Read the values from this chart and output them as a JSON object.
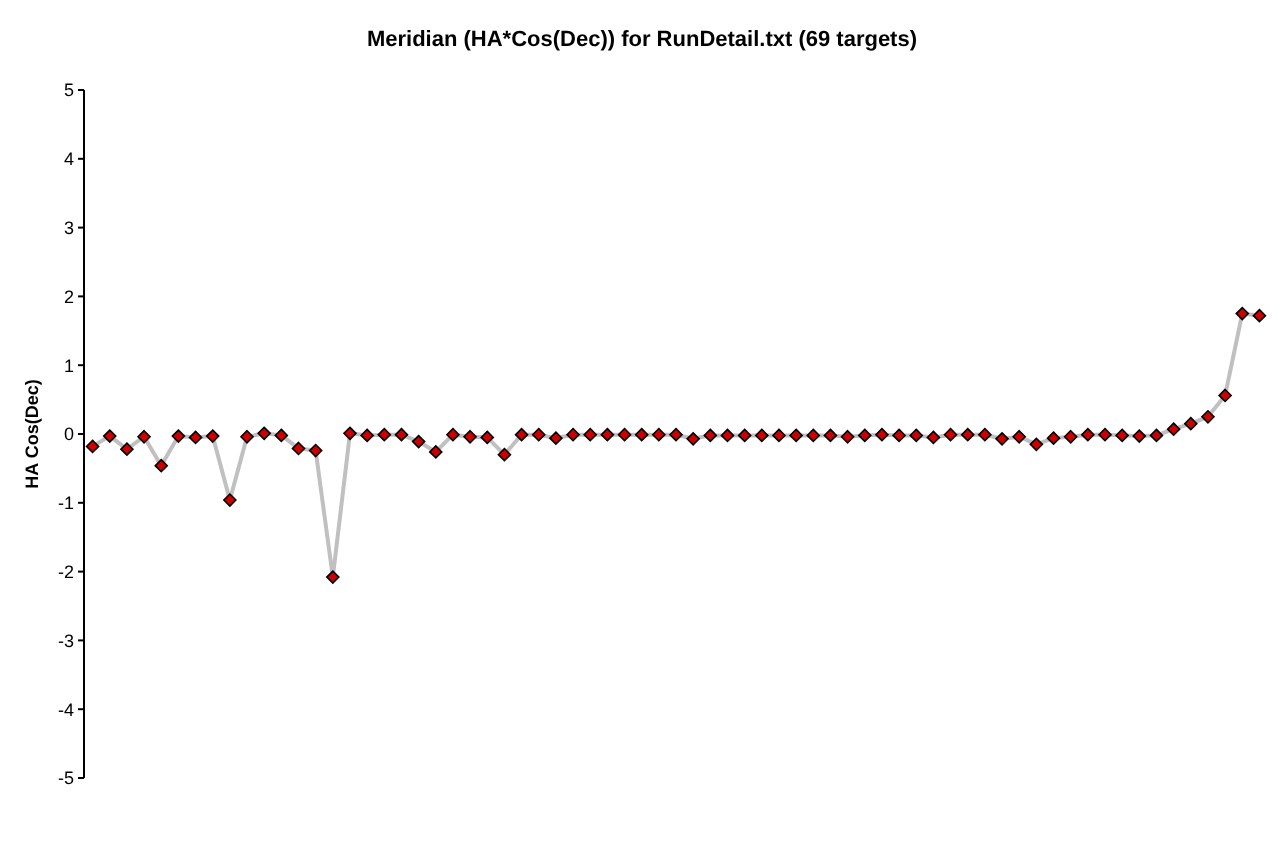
{
  "chart_data": {
    "type": "line",
    "title": "Meridian (HA*Cos(Dec)) for RunDetail.txt (69 targets)",
    "ylabel": "HA Cos(Dec)",
    "categories": [
      null,
      null,
      null,
      null,
      null,
      null,
      null,
      null,
      null,
      null,
      null,
      null,
      null,
      null,
      null,
      null,
      null,
      null,
      null,
      null,
      null,
      null,
      null,
      null,
      null,
      null,
      null,
      null,
      null,
      null,
      null,
      null,
      null,
      null,
      null,
      null,
      null,
      null,
      null,
      null,
      null,
      null,
      null,
      null,
      null,
      null,
      null,
      null,
      null,
      null,
      null,
      null,
      null,
      null,
      null,
      null,
      null,
      null,
      null,
      null,
      null,
      null,
      null,
      null,
      null,
      null,
      null,
      null,
      null
    ],
    "series": [
      {
        "color": "#c0c0c0",
        "colors": [
          "#cc0000",
          "#cc0000",
          "#cc0000",
          "#cc0000",
          "#cc0000",
          "#cc0000",
          "#cc0000",
          "#cc0000",
          "#cc0000",
          "#cc0000",
          "#cc0000",
          "#cc0000",
          "#cc0000",
          "#cc0000",
          "#cc0000",
          "#cc0000",
          "#cc0000",
          "#cc0000",
          "#cc0000",
          "#cc0000",
          "#cc0000",
          "#cc0000",
          "#cc0000",
          "#cc0000",
          "#cc0000",
          "#cc0000",
          "#cc0000",
          "#cc0000",
          "#cc0000",
          "#cc0000",
          "#cc0000",
          "#cc0000",
          "#cc0000",
          "#cc0000",
          "#cc0000",
          "#cc0000",
          "#cc0000",
          "#cc0000",
          "#cc0000",
          "#cc0000",
          "#cc0000",
          "#cc0000",
          "#cc0000",
          "#cc0000",
          "#cc0000",
          "#cc0000",
          "#cc0000",
          "#cc0000",
          "#cc0000",
          "#cc0000",
          "#cc0000",
          "#cc0000",
          "#cc0000",
          "#cc0000",
          "#cc0000",
          "#cc0000",
          "#cc0000",
          "#cc0000",
          "#cc0000",
          "#cc0000",
          "#cc0000",
          "#cc0000",
          "#cc0000",
          "#cc0000",
          "#cc0000",
          "#cc0000",
          "#cc0000",
          "#cc0000",
          "#cc0000"
        ],
        "values": [
          -0.18,
          -0.03,
          -0.22,
          -0.04,
          -0.46,
          -0.03,
          -0.05,
          -0.03,
          -0.96,
          -0.04,
          0.01,
          -0.02,
          -0.21,
          -0.24,
          -2.08,
          0.01,
          -0.02,
          -0.01,
          -0.01,
          -0.11,
          -0.26,
          -0.01,
          -0.04,
          -0.05,
          -0.3,
          -0.01,
          -0.01,
          -0.06,
          -0.01,
          -0.01,
          -0.01,
          -0.01,
          -0.01,
          -0.01,
          -0.01,
          -0.07,
          -0.02,
          -0.02,
          -0.02,
          -0.02,
          -0.02,
          -0.02,
          -0.02,
          -0.02,
          -0.04,
          -0.02,
          -0.01,
          -0.02,
          -0.02,
          -0.05,
          -0.01,
          -0.01,
          -0.01,
          -0.07,
          -0.04,
          -0.15,
          -0.06,
          -0.04,
          -0.01,
          -0.01,
          -0.02,
          -0.03,
          -0.02,
          0.07,
          0.15,
          0.25,
          0.56,
          1.75,
          1.72
        ]
      }
    ],
    "ylim": [
      -5,
      5
    ],
    "yticks": [
      -5,
      -4,
      -3,
      -2,
      -1,
      0,
      1,
      2,
      3,
      4,
      5
    ],
    "marker": "diamond",
    "line_style": "solid",
    "grid": false,
    "legend": false,
    "tick_labels": "y"
  }
}
